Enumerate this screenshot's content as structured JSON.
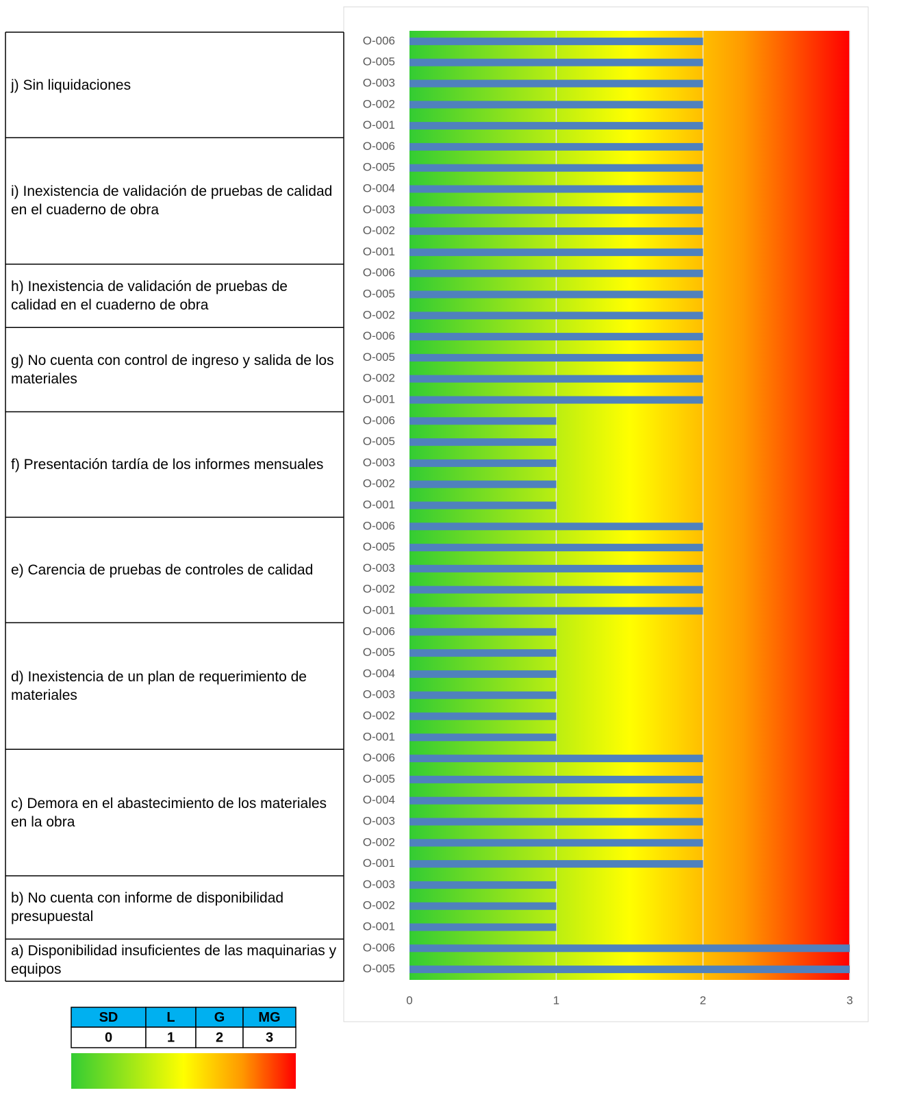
{
  "chart_data": {
    "type": "bar",
    "orientation": "horizontal",
    "groups": [
      {
        "label": "j) Sin liquidaciones",
        "categories": [
          "O-006",
          "O-005",
          "O-003",
          "O-002",
          "O-001"
        ],
        "values": [
          2,
          2,
          2,
          2,
          2
        ]
      },
      {
        "label": "i) Inexistencia de validación de pruebas de calidad en el cuaderno de obra",
        "categories": [
          "O-006",
          "O-005",
          "O-004",
          "O-003",
          "O-002",
          "O-001"
        ],
        "values": [
          2,
          2,
          2,
          2,
          2,
          2
        ]
      },
      {
        "label": "h) Inexistencia de validación de pruebas de calidad en el cuaderno de obra",
        "categories": [
          "O-006",
          "O-005",
          "O-002"
        ],
        "values": [
          2,
          2,
          2
        ]
      },
      {
        "label": "g) No cuenta con control de ingreso y salida de los materiales",
        "categories": [
          "O-006",
          "O-005",
          "O-002",
          "O-001"
        ],
        "values": [
          2,
          2,
          2,
          2
        ]
      },
      {
        "label": "f) Presentación tardía de los informes mensuales",
        "categories": [
          "O-006",
          "O-005",
          "O-003",
          "O-002",
          "O-001"
        ],
        "values": [
          1,
          1,
          1,
          1,
          1
        ]
      },
      {
        "label": "e) Carencia de pruebas de controles de calidad",
        "categories": [
          "O-006",
          "O-005",
          "O-003",
          "O-002",
          "O-001"
        ],
        "values": [
          2,
          2,
          2,
          2,
          2
        ]
      },
      {
        "label": "d) Inexistencia de un plan de requerimiento de materiales",
        "categories": [
          "O-006",
          "O-005",
          "O-004",
          "O-003",
          "O-002",
          "O-001"
        ],
        "values": [
          1,
          1,
          1,
          1,
          1,
          1
        ]
      },
      {
        "label": "c) Demora en el abastecimiento de los materiales en la obra",
        "categories": [
          "O-006",
          "O-005",
          "O-004",
          "O-003",
          "O-002",
          "O-001"
        ],
        "values": [
          2,
          2,
          2,
          2,
          2,
          2
        ]
      },
      {
        "label": "b) No cuenta con informe de disponibilidad presupuestal",
        "categories": [
          "O-003",
          "O-002",
          "O-001"
        ],
        "values": [
          1,
          1,
          1
        ]
      },
      {
        "label": "a) Disponibilidad insuficientes de las maquinarias y equipos",
        "categories": [
          "O-006",
          "O-005"
        ],
        "values": [
          3,
          3
        ]
      }
    ],
    "color": "#4f81bd",
    "background_gradient": [
      "#33cc33",
      "#ffff00",
      "#ff9900",
      "#ff0000"
    ],
    "xlim": [
      0,
      3
    ],
    "xticks": [
      0,
      1,
      2,
      3
    ],
    "grid": true
  },
  "legend_table": {
    "headers": [
      "SD",
      "L",
      "G",
      "MG"
    ],
    "values": [
      0,
      1,
      2,
      3
    ],
    "header_color": "#00b0f0"
  }
}
